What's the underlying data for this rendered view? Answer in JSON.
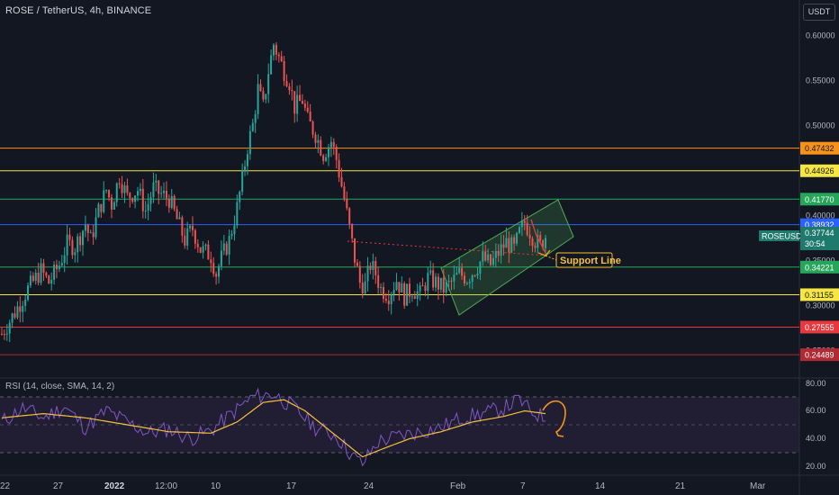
{
  "header": {
    "symbol_title": "ROSE / TetherUS, 4h, BINANCE",
    "currency_button": "USDT"
  },
  "price_axis": {
    "ticks": [
      "0.60000",
      "0.55000",
      "0.50000",
      "0.40000",
      "0.35000",
      "0.30000",
      "0.25000"
    ]
  },
  "horizontal_levels": [
    {
      "price": 0.47432,
      "label": "0.47432",
      "color": "#f7931a"
    },
    {
      "price": 0.44926,
      "label": "0.44926",
      "color": "#f5e642"
    },
    {
      "price": 0.4177,
      "label": "0.41770",
      "color": "#26a65b"
    },
    {
      "price": 0.38932,
      "label": "0.38932",
      "color": "#2962ff"
    },
    {
      "price": 0.34221,
      "label": "0.34221",
      "color": "#26a65b"
    },
    {
      "price": 0.31155,
      "label": "0.31155",
      "color": "#f5e642"
    },
    {
      "price": 0.27555,
      "label": "0.27555",
      "color": "#e8383d"
    },
    {
      "price": 0.24489,
      "label": "0.24489",
      "color": "#b22833"
    }
  ],
  "current_price": {
    "symbol": "ROSEUSDT",
    "price": "0.37744",
    "countdown": "30:54"
  },
  "annotation": {
    "support_label": "Support Line"
  },
  "rsi": {
    "title": "RSI (14, close, SMA, 14, 2)",
    "ticks": [
      "80.00",
      "60.00",
      "40.00",
      "20.00"
    ]
  },
  "time_axis": {
    "labels": [
      "22",
      "27",
      "2022",
      "12:00",
      "10",
      "17",
      "24",
      "Feb",
      "7",
      "14",
      "21",
      "Mar"
    ]
  },
  "colors": {
    "background": "#131722",
    "up_candle": "#26a69a",
    "down_candle": "#ef5350",
    "rsi_line": "#7e57c2",
    "rsi_ma": "#f5c13a",
    "channel": "#4caf50"
  },
  "chart_data": {
    "type": "candlestick",
    "symbol": "ROSE / TetherUS",
    "interval": "4h",
    "exchange": "BINANCE",
    "y_range": [
      0.235,
      0.615
    ],
    "close_path": [
      [
        0,
        0.268
      ],
      [
        5,
        0.292
      ],
      [
        10,
        0.318
      ],
      [
        15,
        0.338
      ],
      [
        18,
        0.325
      ],
      [
        22,
        0.345
      ],
      [
        25,
        0.368
      ],
      [
        28,
        0.365
      ],
      [
        32,
        0.39
      ],
      [
        34,
        0.372
      ],
      [
        37,
        0.405
      ],
      [
        40,
        0.428
      ],
      [
        42,
        0.412
      ],
      [
        45,
        0.443
      ],
      [
        48,
        0.42
      ],
      [
        52,
        0.428
      ],
      [
        55,
        0.405
      ],
      [
        58,
        0.43
      ],
      [
        60,
        0.425
      ],
      [
        64,
        0.418
      ],
      [
        67,
        0.395
      ],
      [
        70,
        0.372
      ],
      [
        73,
        0.385
      ],
      [
        76,
        0.362
      ],
      [
        80,
        0.355
      ],
      [
        82,
        0.335
      ],
      [
        84,
        0.352
      ],
      [
        87,
        0.372
      ],
      [
        90,
        0.408
      ],
      [
        92,
        0.44
      ],
      [
        94,
        0.476
      ],
      [
        96,
        0.5
      ],
      [
        98,
        0.54
      ],
      [
        100,
        0.52
      ],
      [
        102,
        0.56
      ],
      [
        104,
        0.59
      ],
      [
        106,
        0.575
      ],
      [
        108,
        0.56
      ],
      [
        110,
        0.548
      ],
      [
        112,
        0.52
      ],
      [
        115,
        0.528
      ],
      [
        117,
        0.505
      ],
      [
        120,
        0.49
      ],
      [
        123,
        0.468
      ],
      [
        126,
        0.482
      ],
      [
        128,
        0.462
      ],
      [
        131,
        0.418
      ],
      [
        133,
        0.385
      ],
      [
        135,
        0.352
      ],
      [
        137,
        0.325
      ],
      [
        139,
        0.322
      ],
      [
        141,
        0.345
      ],
      [
        143,
        0.335
      ],
      [
        145,
        0.318
      ],
      [
        148,
        0.312
      ],
      [
        151,
        0.328
      ],
      [
        154,
        0.31
      ],
      [
        157,
        0.318
      ],
      [
        160,
        0.312
      ],
      [
        163,
        0.33
      ],
      [
        166,
        0.325
      ],
      [
        169,
        0.318
      ],
      [
        172,
        0.325
      ],
      [
        175,
        0.335
      ],
      [
        178,
        0.33
      ],
      [
        181,
        0.34
      ],
      [
        184,
        0.352
      ],
      [
        187,
        0.345
      ],
      [
        190,
        0.358
      ],
      [
        193,
        0.37
      ],
      [
        196,
        0.362
      ],
      [
        198,
        0.38
      ],
      [
        200,
        0.392
      ],
      [
        202,
        0.382
      ],
      [
        204,
        0.372
      ],
      [
        206,
        0.366
      ],
      [
        208,
        0.377
      ]
    ],
    "rsi_path": [
      [
        0,
        52
      ],
      [
        8,
        62
      ],
      [
        16,
        55
      ],
      [
        24,
        63
      ],
      [
        32,
        48
      ],
      [
        40,
        60
      ],
      [
        48,
        52
      ],
      [
        56,
        44
      ],
      [
        64,
        47
      ],
      [
        72,
        40
      ],
      [
        80,
        46
      ],
      [
        88,
        58
      ],
      [
        96,
        70
      ],
      [
        104,
        72
      ],
      [
        112,
        62
      ],
      [
        120,
        48
      ],
      [
        128,
        42
      ],
      [
        134,
        28
      ],
      [
        138,
        22
      ],
      [
        144,
        38
      ],
      [
        152,
        42
      ],
      [
        160,
        45
      ],
      [
        168,
        48
      ],
      [
        176,
        55
      ],
      [
        184,
        58
      ],
      [
        192,
        62
      ],
      [
        198,
        68
      ],
      [
        202,
        60
      ],
      [
        208,
        55
      ]
    ],
    "rsi_ma_path": [
      [
        0,
        55
      ],
      [
        16,
        58
      ],
      [
        32,
        55
      ],
      [
        48,
        50
      ],
      [
        64,
        45
      ],
      [
        80,
        44
      ],
      [
        90,
        52
      ],
      [
        100,
        66
      ],
      [
        108,
        68
      ],
      [
        116,
        60
      ],
      [
        124,
        48
      ],
      [
        132,
        36
      ],
      [
        138,
        27
      ],
      [
        146,
        33
      ],
      [
        156,
        40
      ],
      [
        168,
        45
      ],
      [
        180,
        52
      ],
      [
        192,
        56
      ],
      [
        200,
        60
      ],
      [
        208,
        58
      ]
    ]
  }
}
